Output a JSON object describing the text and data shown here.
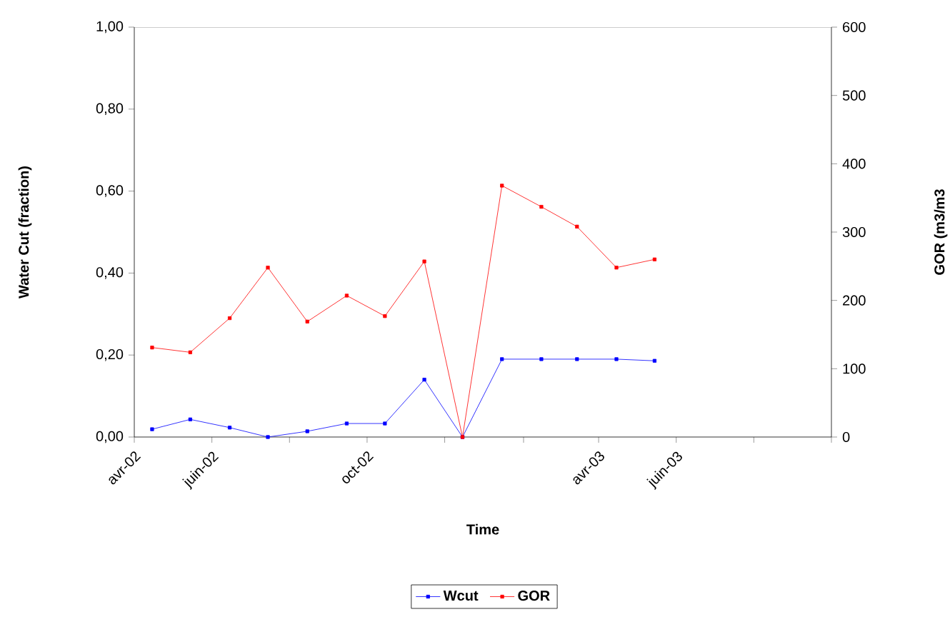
{
  "chart_data": {
    "type": "line",
    "xlabel": "Time",
    "ylabel": "Water Cut (fraction)",
    "y2label": "GOR (m3/m3",
    "x": [
      "2002-04-15",
      "2002-05-15",
      "2002-06-15",
      "2002-07-15",
      "2002-08-15",
      "2002-09-15",
      "2002-10-15",
      "2002-11-15",
      "2002-12-15",
      "2003-01-15",
      "2003-02-15",
      "2003-03-15",
      "2003-04-15",
      "2003-05-15"
    ],
    "series": [
      {
        "name": "Wcut",
        "color": "#0000ff",
        "values": [
          0.019,
          0.043,
          0.023,
          0,
          0.014,
          0.033,
          0.033,
          0.14,
          0,
          0.19,
          0.19,
          0.19,
          0.19,
          0.186
        ]
      },
      {
        "name": "GOR",
        "color": "#ff0000",
        "axis": "y2",
        "values": [
          131,
          124,
          174,
          248,
          169,
          207,
          177,
          257,
          0,
          368,
          337,
          308,
          248,
          260
        ]
      }
    ],
    "xlim": [
      "2002-04",
      "2003-10"
    ],
    "xticks": [
      {
        "value": "2002-04",
        "label": "avr-02"
      },
      {
        "value": "2002-06",
        "label": "juin-02"
      },
      {
        "value": "2002-08",
        "label": null
      },
      {
        "value": "2002-10",
        "label": "oct-02"
      },
      {
        "value": "2002-12",
        "label": null
      },
      {
        "value": "2003-02",
        "label": null
      },
      {
        "value": "2003-04",
        "label": "avr-03"
      },
      {
        "value": "2003-06",
        "label": "juin-03"
      },
      {
        "value": "2003-08",
        "label": null
      },
      {
        "value": "2003-10",
        "label": null
      }
    ],
    "ylim": [
      0,
      1
    ],
    "yticks": [
      {
        "value": 0,
        "label": "0,00"
      },
      {
        "value": 0.2,
        "label": "0,20"
      },
      {
        "value": 0.4,
        "label": "0,40"
      },
      {
        "value": 0.6,
        "label": "0,60"
      },
      {
        "value": 0.8,
        "label": "0,80"
      },
      {
        "value": 1,
        "label": "1,00"
      }
    ],
    "y2lim": [
      0,
      600
    ],
    "y2ticks": [
      0,
      100,
      200,
      300,
      400,
      500,
      600
    ],
    "legend": "bottom",
    "grid": false,
    "marker": "square"
  }
}
